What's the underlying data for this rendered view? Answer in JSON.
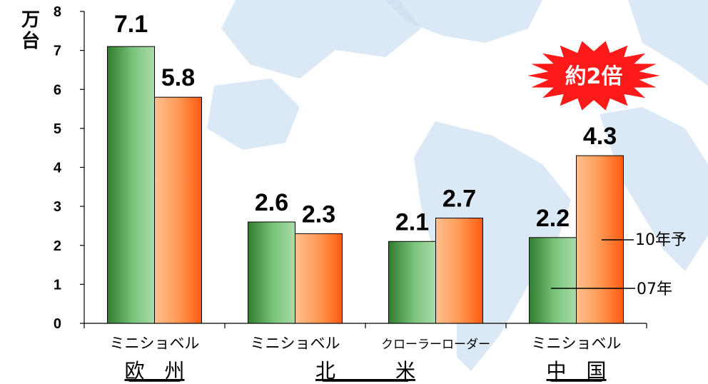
{
  "colors": {
    "series_07": "#3d8f3d",
    "series_10": "#ff6a20",
    "badge": "#ff1a1a",
    "map": "#cfe0f2"
  },
  "chart_data": {
    "type": "bar",
    "unit": "万台",
    "ylim": [
      0,
      8
    ],
    "yticks": [
      "0",
      "1",
      "2",
      "3",
      "4",
      "5",
      "6",
      "7",
      "8"
    ],
    "regions": [
      "欧　州",
      "北　　　米",
      "中　国"
    ],
    "categories": [
      "ミニショベル",
      "ミニショベル",
      "クローラーローダー",
      "ミニショベル"
    ],
    "series": [
      {
        "name": "07年",
        "values": [
          7.1,
          2.6,
          2.1,
          2.2
        ],
        "labels": [
          "7.1",
          "2.6",
          "2.1",
          "2.2"
        ]
      },
      {
        "name": "10年予",
        "values": [
          5.8,
          2.3,
          2.7,
          4.3
        ],
        "labels": [
          "5.8",
          "2.3",
          "2.7",
          "4.3"
        ]
      }
    ],
    "annotation": "約2倍"
  }
}
